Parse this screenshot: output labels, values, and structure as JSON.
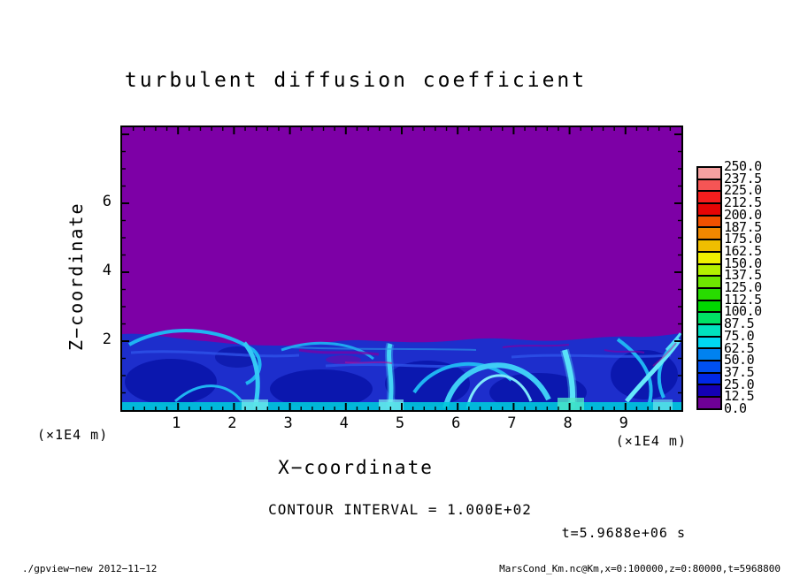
{
  "title": "turbulent diffusion coefficient",
  "axes": {
    "x": {
      "label": "X−coordinate",
      "unit_left": "(×1E4 m)",
      "unit_right": "(×1E4 m)",
      "ticks": [
        "1",
        "2",
        "3",
        "4",
        "5",
        "6",
        "7",
        "8",
        "9"
      ]
    },
    "z": {
      "label": "Z−coordinate",
      "ticks": [
        "2",
        "4",
        "6"
      ]
    }
  },
  "colorbar": {
    "labels": [
      "250.0",
      "237.5",
      "225.0",
      "212.5",
      "200.0",
      "187.5",
      "175.0",
      "162.5",
      "150.0",
      "137.5",
      "125.0",
      "112.5",
      "100.0",
      "87.5",
      "75.0",
      "62.5",
      "50.0",
      "37.5",
      "25.0",
      "12.5",
      "0.0"
    ],
    "colors_top_to_bottom": [
      "#F5A0A0",
      "#F55555",
      "#F51E1E",
      "#E60505",
      "#F05000",
      "#F08700",
      "#F0BE00",
      "#F0F000",
      "#B4F000",
      "#6EE600",
      "#28DC00",
      "#00D700",
      "#00E164",
      "#00E1BE",
      "#00D7F0",
      "#0082F0",
      "#0050F0",
      "#0028E6",
      "#1400B4",
      "#6E0096"
    ]
  },
  "annotations": {
    "contour_interval": "CONTOUR INTERVAL = 1.000E+02",
    "time": "t=5.9688e+06 s"
  },
  "footer": {
    "left": "./gpview−new  2012−11−12",
    "right": "MarsCond_Km.nc@Km,x=0:100000,z=0:80000,t=5968800"
  },
  "chart_data": {
    "type": "heatmap",
    "title": "turbulent diffusion coefficient",
    "xlabel": "X−coordinate",
    "ylabel": "Z−coordinate",
    "axis_unit": "(×1E4 m)",
    "xlim": [
      0,
      10
    ],
    "zlim": [
      0,
      8.2
    ],
    "x_ticks": [
      1,
      2,
      3,
      4,
      5,
      6,
      7,
      8,
      9
    ],
    "z_ticks": [
      2,
      4,
      6
    ],
    "x_minor_step": 0.2,
    "z_minor_step": 0.5,
    "contour_interval": 100.0,
    "time_seconds": 5968800,
    "time_label": "t=5.9688e+06 s",
    "colorbar_levels": [
      0,
      12.5,
      25,
      37.5,
      50,
      62.5,
      75,
      87.5,
      100,
      112.5,
      125,
      137.5,
      150,
      162.5,
      175,
      187.5,
      200,
      212.5,
      225,
      237.5,
      250
    ],
    "colorbar_min": 0.0,
    "colorbar_max": 250.0,
    "colorbar_step": 12.5,
    "field": {
      "upper_region": {
        "z_range": [
          2.1,
          8.2
        ],
        "approx_value": 0,
        "bin": "0.0–12.5",
        "color": "purple"
      },
      "mixed_layer": {
        "z_range": [
          0,
          2.1
        ],
        "approx_value_range": [
          12.5,
          112.5
        ],
        "description": "turbulent convective boundary layer: blue background ~25–50 with dark eddy cores ~12.5–25, bright cyan plume filaments and vortex arcs ~62.5–100, thin cyan surface layer ~75–100, wavy interface near z=2 with purple intrusions"
      }
    },
    "grid": false,
    "legend_position": "right-colorbar"
  }
}
